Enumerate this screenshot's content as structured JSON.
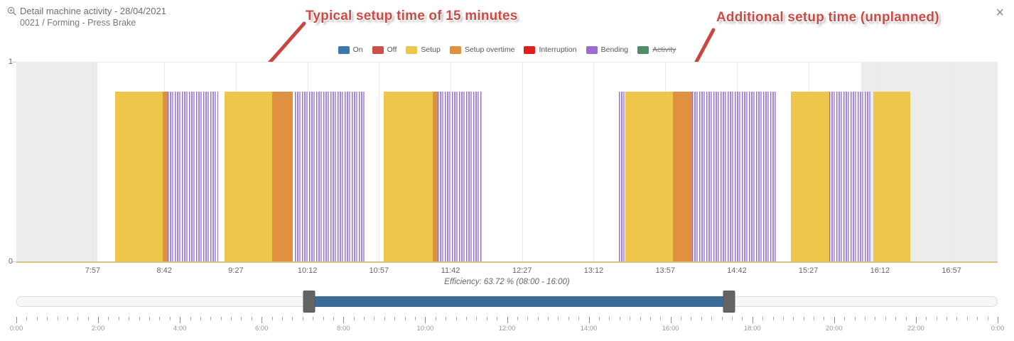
{
  "header": {
    "title": "Detail machine activity - 28/04/2021",
    "subtitle": "0021 / Forming - Press Brake"
  },
  "close_label": "×",
  "annotations": {
    "typical": "Typical setup time of 15 minutes",
    "additional": "Additional setup time (unplanned)",
    "color": "#cb4b44"
  },
  "legend": {
    "items": [
      {
        "label": "On",
        "color": "#3c76af",
        "disabled": false
      },
      {
        "label": "Off",
        "color": "#cd4f4c",
        "disabled": false
      },
      {
        "label": "Setup",
        "color": "#edc64b",
        "disabled": false
      },
      {
        "label": "Setup overtime",
        "color": "#e0913f",
        "disabled": false
      },
      {
        "label": "Interruption",
        "color": "#e31c1c",
        "disabled": false
      },
      {
        "label": "Bending",
        "color": "#9b6dd0",
        "disabled": false
      },
      {
        "label": "Activity",
        "color": "#4d8e67",
        "disabled": true
      }
    ]
  },
  "chart_data": {
    "type": "timeline",
    "title": "Detail machine activity - 28/04/2021",
    "y_axis": {
      "min": 0,
      "max": 1,
      "max_label": "1",
      "min_label": "0"
    },
    "bar_value": 0.85,
    "x_axis": {
      "start_min": 429,
      "end_min": 1046,
      "ticks": [
        {
          "min": 477,
          "label": "7:57"
        },
        {
          "min": 522,
          "label": "8:42"
        },
        {
          "min": 567,
          "label": "9:27"
        },
        {
          "min": 612,
          "label": "10:12"
        },
        {
          "min": 657,
          "label": "10:57"
        },
        {
          "min": 702,
          "label": "11:42"
        },
        {
          "min": 747,
          "label": "12:27"
        },
        {
          "min": 792,
          "label": "13:12"
        },
        {
          "min": 837,
          "label": "13:57"
        },
        {
          "min": 882,
          "label": "14:42"
        },
        {
          "min": 927,
          "label": "15:27"
        },
        {
          "min": 972,
          "label": "16:12"
        },
        {
          "min": 1017,
          "label": "16:57"
        }
      ]
    },
    "off_shift_bands": [
      {
        "from_min": 429,
        "to_min": 480
      },
      {
        "from_min": 960,
        "to_min": 1046
      }
    ],
    "segments": [
      {
        "state": "Setup",
        "from": "8:11",
        "to": "8:41",
        "from_min": 491,
        "to_min": 521
      },
      {
        "state": "Setup overtime",
        "from": "8:41",
        "to": "8:44",
        "from_min": 521,
        "to_min": 524
      },
      {
        "state": "Bending",
        "from": "8:44",
        "to": "9:16",
        "from_min": 524,
        "to_min": 556
      },
      {
        "state": "Setup",
        "from": "9:20",
        "to": "9:50",
        "from_min": 560,
        "to_min": 590
      },
      {
        "state": "Setup overtime",
        "from": "9:50",
        "to": "10:03",
        "from_min": 590,
        "to_min": 603
      },
      {
        "state": "Bending",
        "from": "10:04",
        "to": "10:48",
        "from_min": 604,
        "to_min": 648
      },
      {
        "state": "Setup",
        "from": "11:00",
        "to": "11:31",
        "from_min": 660,
        "to_min": 691
      },
      {
        "state": "Setup overtime",
        "from": "11:31",
        "to": "11:34",
        "from_min": 691,
        "to_min": 694
      },
      {
        "state": "Bending",
        "from": "11:34",
        "to": "12:02",
        "from_min": 694,
        "to_min": 722
      },
      {
        "state": "Bending",
        "from": "13:28",
        "to": "13:32",
        "from_min": 808,
        "to_min": 812
      },
      {
        "state": "Setup",
        "from": "13:32",
        "to": "14:02",
        "from_min": 812,
        "to_min": 842
      },
      {
        "state": "Setup overtime",
        "from": "14:02",
        "to": "14:14",
        "from_min": 842,
        "to_min": 854
      },
      {
        "state": "Bending",
        "from": "14:14",
        "to": "15:07",
        "from_min": 854,
        "to_min": 907
      },
      {
        "state": "Setup",
        "from": "15:16",
        "to": "15:40",
        "from_min": 916,
        "to_min": 940
      },
      {
        "state": "Bending",
        "from": "15:40",
        "to": "16:06",
        "from_min": 940,
        "to_min": 966
      },
      {
        "state": "Setup",
        "from": "16:08",
        "to": "16:31",
        "from_min": 968,
        "to_min": 991
      }
    ]
  },
  "efficiency_label": "Efficiency: 63.72 % (08:00 - 16:00)",
  "navigator": {
    "total_min": 1440,
    "selected_start_min": 429,
    "selected_end_min": 1046,
    "bar_color": "#3d6b98"
  },
  "ruler": {
    "total_min": 1440,
    "minor_step_min": 15,
    "major_step_min": 120,
    "labels": [
      "0:00",
      "2:00",
      "4:00",
      "6:00",
      "8:00",
      "10:00",
      "12:00",
      "14:00",
      "16:00",
      "18:00",
      "20:00",
      "22:00",
      "0:00"
    ]
  }
}
